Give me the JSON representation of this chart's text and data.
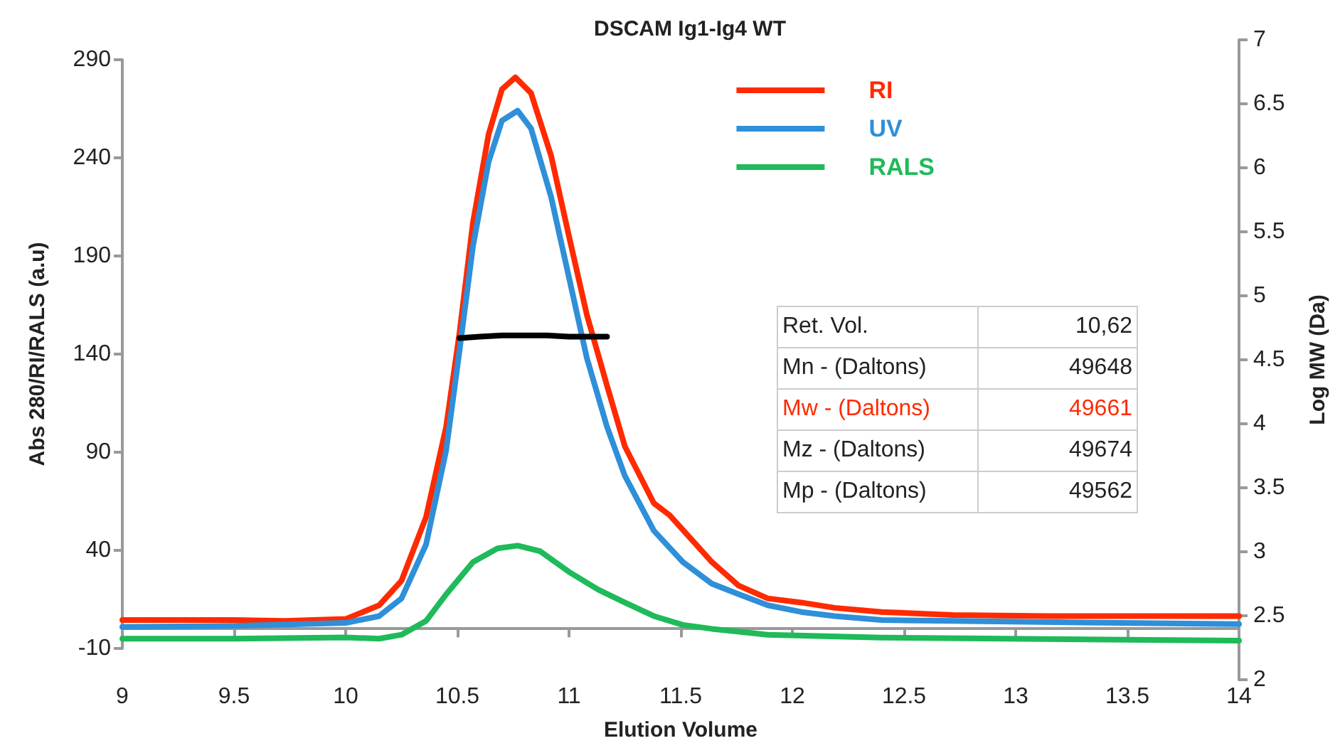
{
  "chart_data": {
    "type": "line",
    "title": "DSCAM Ig1-Ig4 WT",
    "xlabel": "Elution Volume",
    "ylabel": "Abs 280/RI/RALS (a.u)",
    "y2label": "Log MW (Da)",
    "xlim": [
      9,
      14
    ],
    "xticks": [
      9,
      9.5,
      10,
      10.5,
      11,
      11.5,
      12,
      12.5,
      13,
      13.5,
      14
    ],
    "ylim": [
      -10,
      290
    ],
    "yticks": [
      -10,
      40,
      90,
      140,
      190,
      240,
      290
    ],
    "y2lim": [
      2,
      7
    ],
    "y2ticks": [
      2,
      2.5,
      3,
      3.5,
      4,
      4.5,
      5,
      5.5,
      6,
      6.5,
      7
    ],
    "grid": false,
    "legend": "top right",
    "marker": "none",
    "line_style": "solid",
    "series": [
      {
        "name": "RI",
        "color": "#ff2a00",
        "x": [
          9,
          9.5,
          9.73,
          10,
          10.15,
          10.25,
          10.36,
          10.45,
          10.51,
          10.57,
          10.64,
          10.7,
          10.76,
          10.83,
          10.92,
          11,
          11.08,
          11.17,
          11.25,
          11.38,
          11.45,
          11.64,
          11.76,
          11.89,
          12.04,
          12.19,
          12.4,
          12.72,
          13.15,
          14
        ],
        "values": [
          4.5,
          4.5,
          4,
          5,
          12,
          24.5,
          57,
          103,
          151,
          207,
          252,
          275,
          281,
          273,
          241,
          200,
          160,
          124,
          93,
          64,
          58,
          34,
          22,
          15.5,
          13.4,
          10.7,
          8.6,
          7,
          6.5,
          6.5
        ]
      },
      {
        "name": "UV",
        "color": "#2f8fd8",
        "x": [
          9,
          9.5,
          10,
          10.15,
          10.25,
          10.36,
          10.45,
          10.51,
          10.57,
          10.64,
          10.7,
          10.77,
          10.83,
          10.92,
          11,
          11.08,
          11.17,
          11.25,
          11.38,
          11.51,
          11.64,
          11.76,
          11.89,
          12.04,
          12.19,
          12.4,
          12.72,
          14
        ],
        "values": [
          1,
          1.5,
          3,
          6.5,
          15.5,
          43,
          91,
          142,
          195,
          238,
          259,
          264,
          255,
          220,
          179,
          138,
          103,
          78,
          50,
          34,
          23,
          17.6,
          12,
          8.6,
          6.5,
          4.5,
          4,
          2.4
        ]
      },
      {
        "name": "RALS",
        "color": "#1fba5a",
        "x": [
          9,
          9.5,
          10,
          10.15,
          10.25,
          10.36,
          10.45,
          10.57,
          10.68,
          10.77,
          10.87,
          11,
          11.13,
          11.25,
          11.38,
          11.51,
          11.64,
          11.89,
          12.4,
          14
        ],
        "values": [
          -5,
          -5,
          -4.4,
          -5,
          -3,
          4,
          17.6,
          34,
          41,
          42.4,
          39.6,
          29,
          20,
          13.4,
          6.5,
          2,
          0,
          -3,
          -4.5,
          -6
        ]
      },
      {
        "color": "#000000",
        "axis": "y2",
        "x": [
          10.51,
          10.6,
          10.7,
          10.8,
          10.9,
          11,
          11.1,
          11.17
        ],
        "values": [
          4.67,
          4.68,
          4.69,
          4.69,
          4.69,
          4.68,
          4.68,
          4.68
        ]
      }
    ],
    "annotations": [
      "Ret. Vol.",
      "10,62",
      "Mn - (Daltons)",
      "49648",
      "Mw - (Daltons)",
      "49661",
      "Mz - (Daltons)",
      "49674",
      "Mp - (Daltons)",
      "49562"
    ]
  }
}
